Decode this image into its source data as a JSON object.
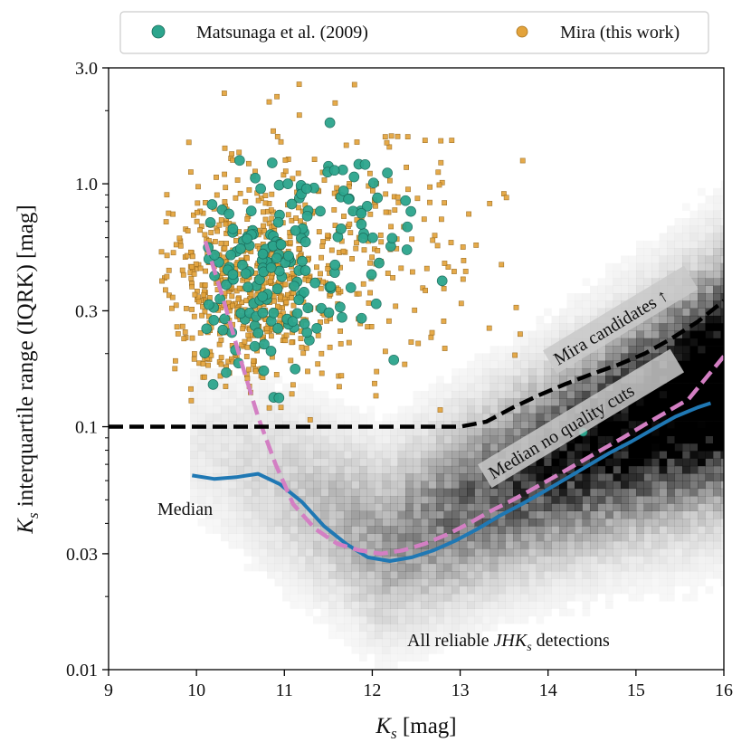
{
  "chart_data": {
    "type": "scatter",
    "title": "",
    "xlabel": "K_s [mag]",
    "xlabel_parts": {
      "symbol": "K",
      "subscript": "s",
      "unit": " [mag]"
    },
    "ylabel": "K_s interquartile range (IQRK) [mag]",
    "ylabel_parts": {
      "symbol": "K",
      "subscript": "s",
      "rest": " interquartile range (IQRK) [mag]"
    },
    "xlim": [
      9,
      16
    ],
    "ylim": [
      0.01,
      3.0
    ],
    "yscale": "log",
    "x_ticks": [
      9,
      10,
      11,
      12,
      13,
      14,
      15,
      16
    ],
    "x_tick_labels": [
      "9",
      "10",
      "11",
      "12",
      "13",
      "14",
      "15",
      "16"
    ],
    "y_ticks": [
      0.01,
      0.03,
      0.1,
      0.3,
      1.0,
      3.0
    ],
    "y_tick_labels": [
      "0.01",
      "0.03",
      "0.1",
      "0.3",
      "1.0",
      "3.0"
    ],
    "legend": {
      "placement": "top-center (outside)",
      "entries": [
        {
          "label": "Matsunaga et al. (2009)",
          "color": "#2ca58d",
          "marker": "circle"
        },
        {
          "label": "Mira (this work)",
          "color": "#e3a33b",
          "marker": "square"
        }
      ]
    },
    "series": [
      {
        "name": "Median",
        "style": "solid",
        "color": "#1f78b4",
        "x": [
          9.95,
          10.2,
          10.45,
          10.7,
          10.95,
          11.2,
          11.45,
          11.7,
          11.95,
          12.2,
          12.45,
          12.7,
          12.95,
          13.2,
          13.45,
          13.7,
          13.95,
          14.2,
          14.45,
          14.7,
          14.95,
          15.2,
          15.45,
          15.7,
          15.85
        ],
        "y": [
          0.063,
          0.061,
          0.062,
          0.064,
          0.058,
          0.049,
          0.039,
          0.033,
          0.029,
          0.028,
          0.029,
          0.031,
          0.034,
          0.038,
          0.043,
          0.048,
          0.054,
          0.061,
          0.069,
          0.078,
          0.087,
          0.098,
          0.11,
          0.12,
          0.125
        ]
      },
      {
        "name": "Median no quality cuts",
        "style": "dashed",
        "color": "#d37fc3",
        "x": [
          10.1,
          10.3,
          10.5,
          10.7,
          10.9,
          11.1,
          11.35,
          11.6,
          11.85,
          12.1,
          12.35,
          12.6,
          12.85,
          13.1,
          13.35,
          13.6,
          13.85,
          14.1,
          14.35,
          14.6,
          14.85,
          15.1,
          15.35,
          15.6,
          16.0
        ],
        "y": [
          0.58,
          0.34,
          0.19,
          0.11,
          0.07,
          0.048,
          0.038,
          0.033,
          0.031,
          0.03,
          0.031,
          0.033,
          0.036,
          0.04,
          0.045,
          0.05,
          0.056,
          0.063,
          0.071,
          0.08,
          0.09,
          0.102,
          0.115,
          0.13,
          0.195
        ]
      },
      {
        "name": "Mira candidates threshold",
        "style": "dashed",
        "color": "#000000",
        "x": [
          9.0,
          10.0,
          11.0,
          12.0,
          13.0,
          13.3,
          13.6,
          13.9,
          14.2,
          14.5,
          14.8,
          15.1,
          15.4,
          15.7,
          16.0
        ],
        "y": [
          0.1,
          0.1,
          0.1,
          0.1,
          0.1,
          0.105,
          0.12,
          0.135,
          0.15,
          0.165,
          0.18,
          0.2,
          0.23,
          0.27,
          0.33
        ]
      }
    ],
    "scatter_description": {
      "Mira (this work)": "hundreds of points, Ks approx 9.6 to 14.3 mag, IQRK approx 0.1 to 2.6 mag, densest near Ks 10-11, IQRK 0.2-0.6",
      "Matsunaga et al. (2009)": "about 170 points, Ks approx 10.0 to 13.5 mag (one near 14.4), IQRK approx 0.1 to 1.8 mag",
      "background": "grayscale 2D density of all reliable JHKs detections, densest near Ks 15-16, IQRK 0.05-0.15"
    },
    "annotations": {
      "median": "Median",
      "median_no_cuts": "Median no quality cuts",
      "mira_candidates": "Mira candidates ↑",
      "all_reliable_prefix": "All reliable ",
      "all_reliable_math": "JHK",
      "all_reliable_sub": "s",
      "all_reliable_suffix": " detections"
    }
  }
}
